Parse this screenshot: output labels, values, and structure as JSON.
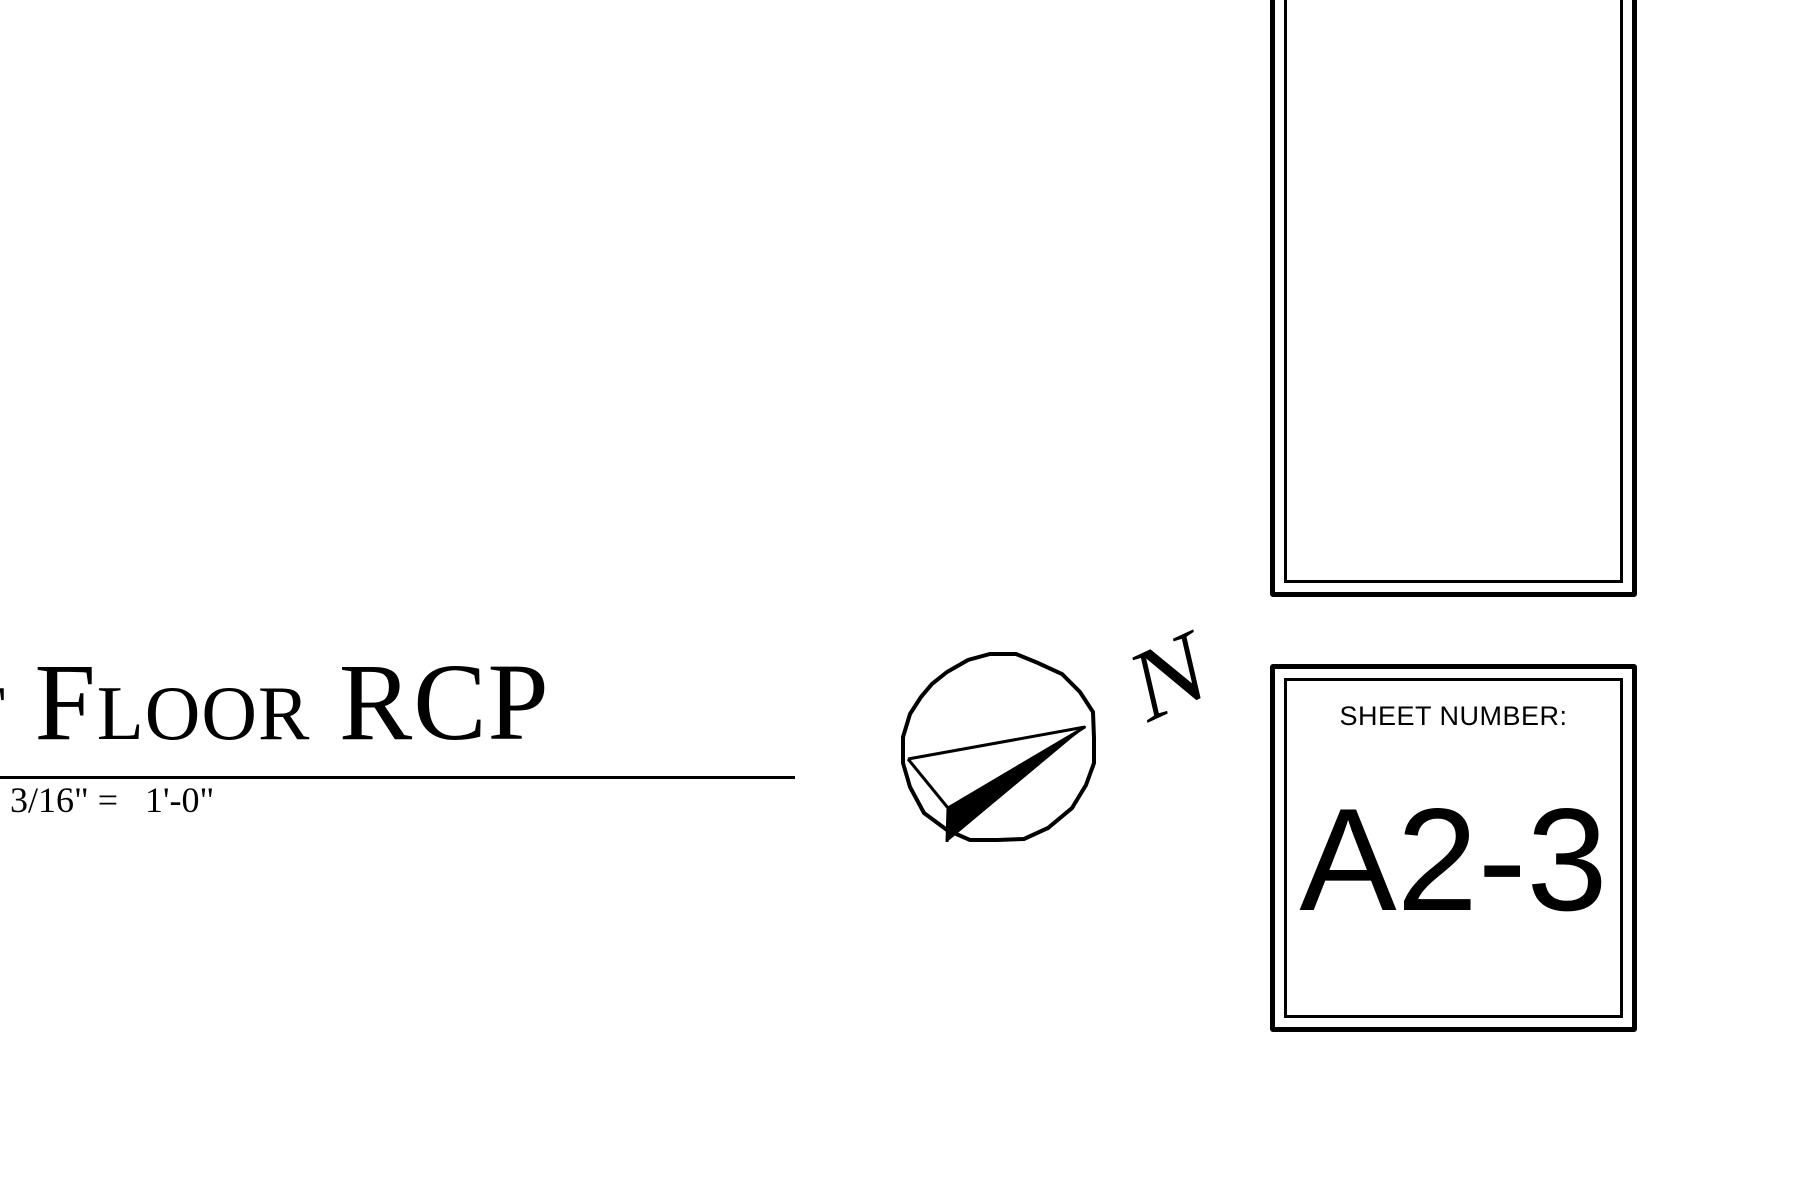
{
  "drawing": {
    "title": "t Floor RCP",
    "scale": "3/16\" =   1'-0\""
  },
  "north_arrow": {
    "label": "N",
    "icon": "north-arrow-icon"
  },
  "title_block": {
    "sheet_number_label": "SHEET NUMBER:",
    "sheet_number": "A2-3"
  }
}
